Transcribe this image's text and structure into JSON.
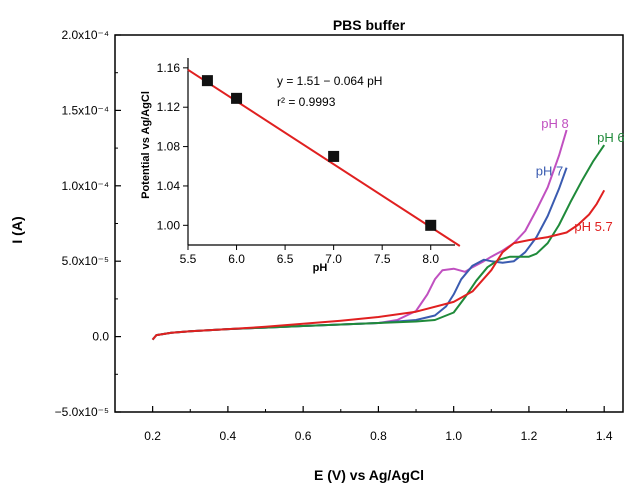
{
  "chart_data": [
    {
      "type": "line",
      "title": "PBS buffer",
      "xlabel": "E (V) vs Ag/AgCl",
      "ylabel": "I (A)",
      "xlim": [
        0.1,
        1.45
      ],
      "ylim": [
        -5e-05,
        0.0002
      ],
      "x_ticks": [
        0.2,
        0.4,
        0.6,
        0.8,
        1.0,
        1.2,
        1.4
      ],
      "x_tick_labels": [
        "0.2",
        "0.4",
        "0.6",
        "0.8",
        "1.0",
        "1.2",
        "1.4"
      ],
      "y_ticks": [
        -5e-05,
        0,
        5e-05,
        0.0001,
        0.00015,
        0.0002
      ],
      "y_tick_labels": [
        "−5.0x10⁻⁵",
        "0.0",
        "5.0x10⁻⁵",
        "1.0x10⁻⁴",
        "1.5x10⁻⁴",
        "2.0x10⁻⁴"
      ],
      "series": [
        {
          "name": "pH 8",
          "color": "#c050c0",
          "x": [
            0.2,
            0.21,
            0.25,
            0.3,
            0.4,
            0.5,
            0.6,
            0.7,
            0.8,
            0.85,
            0.9,
            0.93,
            0.95,
            0.97,
            1.0,
            1.03,
            1.05,
            1.08,
            1.1,
            1.13,
            1.16,
            1.19,
            1.22,
            1.25,
            1.28,
            1.3
          ],
          "y": [
            -2e-06,
            1e-06,
            2.5e-06,
            3.5e-06,
            5e-06,
            6e-06,
            7e-06,
            8e-06,
            9e-06,
            1.1e-05,
            1.7e-05,
            2.8e-05,
            3.8e-05,
            4.4e-05,
            4.5e-05,
            4.3e-05,
            4.6e-05,
            5e-05,
            5.3e-05,
            5.7e-05,
            6.2e-05,
            7e-05,
            8.4e-05,
            9.9e-05,
            0.00012,
            0.000137
          ]
        },
        {
          "name": "pH 7",
          "color": "#3a5bb0",
          "x": [
            0.2,
            0.21,
            0.25,
            0.3,
            0.4,
            0.5,
            0.6,
            0.7,
            0.8,
            0.9,
            0.95,
            0.98,
            1.0,
            1.02,
            1.05,
            1.08,
            1.1,
            1.13,
            1.16,
            1.19,
            1.22,
            1.25,
            1.28,
            1.3
          ],
          "y": [
            -2e-06,
            1e-06,
            2.5e-06,
            3.5e-06,
            5e-06,
            6e-06,
            7e-06,
            8e-06,
            9e-06,
            1.1e-05,
            1.4e-05,
            2e-05,
            2.8e-05,
            3.8e-05,
            4.7e-05,
            5.1e-05,
            5e-05,
            4.9e-05,
            5e-05,
            5.6e-05,
            6.6e-05,
            8e-05,
            9.8e-05,
            0.000112
          ]
        },
        {
          "name": "pH 6",
          "color": "#1f8a3a",
          "x": [
            0.2,
            0.21,
            0.25,
            0.3,
            0.4,
            0.5,
            0.6,
            0.7,
            0.8,
            0.9,
            0.95,
            1.0,
            1.03,
            1.06,
            1.09,
            1.12,
            1.15,
            1.18,
            1.2,
            1.22,
            1.25,
            1.28,
            1.31,
            1.34,
            1.37,
            1.4
          ],
          "y": [
            -2e-06,
            1e-06,
            2.5e-06,
            3.5e-06,
            5e-06,
            6e-06,
            7e-06,
            8e-06,
            9e-06,
            1e-05,
            1.1e-05,
            1.6e-05,
            2.6e-05,
            3.7e-05,
            4.6e-05,
            5.1e-05,
            5.3e-05,
            5.3e-05,
            5.3e-05,
            5.5e-05,
            6.2e-05,
            7.4e-05,
            8.9e-05,
            0.000103,
            0.000116,
            0.000127
          ]
        },
        {
          "name": "pH 5.7",
          "color": "#e02020",
          "x": [
            0.2,
            0.21,
            0.25,
            0.3,
            0.4,
            0.5,
            0.6,
            0.7,
            0.8,
            0.9,
            1.0,
            1.05,
            1.1,
            1.13,
            1.16,
            1.2,
            1.25,
            1.3,
            1.33,
            1.36,
            1.38,
            1.4
          ],
          "y": [
            -2e-06,
            1e-06,
            2.5e-06,
            3.5e-06,
            5e-06,
            6.5e-06,
            8.5e-06,
            1.05e-05,
            1.3e-05,
            1.65e-05,
            2.3e-05,
            3e-05,
            4.4e-05,
            5.6e-05,
            6.2e-05,
            6.4e-05,
            6.6e-05,
            6.9e-05,
            7.4e-05,
            8.1e-05,
            8.8e-05,
            9.7e-05
          ]
        }
      ]
    },
    {
      "type": "scatter",
      "xlabel": "pH",
      "ylabel": "Potential vs Ag/AgCl",
      "xlim": [
        5.5,
        8.25
      ],
      "ylim": [
        0.98,
        1.17
      ],
      "x_ticks": [
        5.5,
        6.0,
        6.5,
        7.0,
        7.5,
        8.0
      ],
      "x_tick_labels": [
        "5.5",
        "6.0",
        "6.5",
        "7.0",
        "7.5",
        "8.0"
      ],
      "y_ticks": [
        1.0,
        1.04,
        1.08,
        1.12,
        1.16
      ],
      "y_tick_labels": [
        "1.00",
        "1.04",
        "1.08",
        "1.12",
        "1.16"
      ],
      "points": {
        "x": [
          5.7,
          6.0,
          7.0,
          8.0
        ],
        "y": [
          1.147,
          1.129,
          1.07,
          1.0
        ]
      },
      "fit_line": {
        "x": [
          5.5,
          8.3
        ],
        "y": [
          1.158,
          0.979
        ],
        "color": "#e02020"
      },
      "annotations": [
        "y = 1.51 − 0.064 pH",
        "r² = 0.9993"
      ]
    }
  ]
}
